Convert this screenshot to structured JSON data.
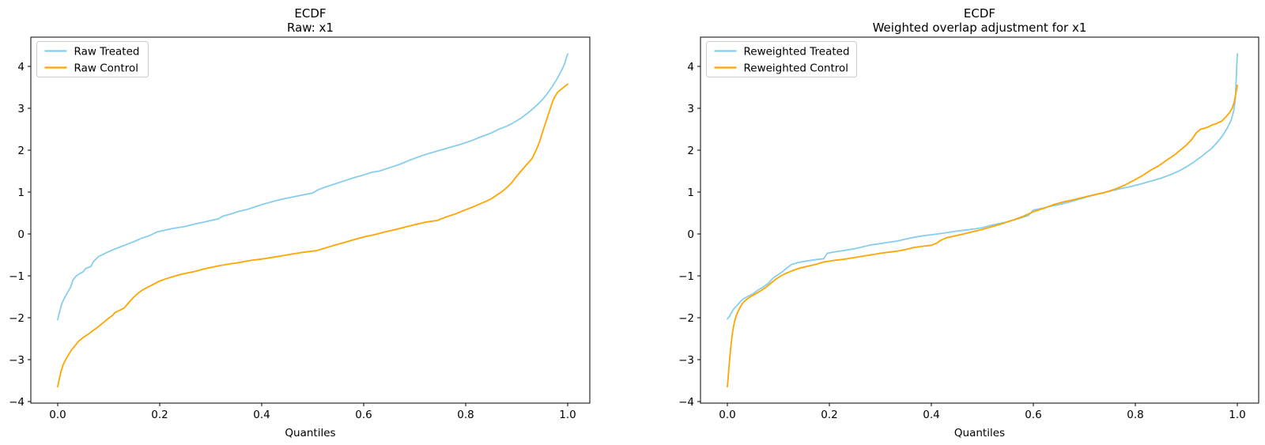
{
  "figure": {
    "background": "#ffffff",
    "text_color": "#000000",
    "spine_color": "#000000"
  },
  "chart_data": [
    {
      "type": "line",
      "title": "ECDF",
      "subtitle": "Raw: x1",
      "xlabel": "Quantiles",
      "ylabel": "",
      "xlim": [
        -0.053,
        1.043
      ],
      "ylim": [
        -4.04,
        4.36
      ],
      "grid": false,
      "legend_position": "upper left",
      "xticks": [
        0.0,
        0.2,
        0.4,
        0.6,
        0.8,
        1.0
      ],
      "xtick_labels": [
        "0.0",
        "0.2",
        "0.4",
        "0.6",
        "0.8",
        "1.0"
      ],
      "yticks": [
        -4,
        -3,
        -2,
        -1,
        0,
        1,
        2,
        3,
        4
      ],
      "ytick_labels": [
        "−4",
        "−3",
        "−2",
        "−1",
        "0",
        "1",
        "2",
        "3",
        "4"
      ],
      "series": [
        {
          "name": "Raw Treated",
          "color": "#87CEEB",
          "x": [
            0.0,
            0.004,
            0.008,
            0.012,
            0.018,
            0.025,
            0.03,
            0.035,
            0.04,
            0.05,
            0.055,
            0.065,
            0.07,
            0.08,
            0.09,
            0.1,
            0.11,
            0.12,
            0.135,
            0.15,
            0.165,
            0.18,
            0.195,
            0.21,
            0.225,
            0.25,
            0.27,
            0.285,
            0.3,
            0.315,
            0.325,
            0.34,
            0.355,
            0.37,
            0.385,
            0.4,
            0.42,
            0.44,
            0.46,
            0.48,
            0.5,
            0.51,
            0.525,
            0.545,
            0.56,
            0.58,
            0.6,
            0.615,
            0.63,
            0.65,
            0.67,
            0.69,
            0.71,
            0.73,
            0.75,
            0.77,
            0.79,
            0.81,
            0.83,
            0.85,
            0.865,
            0.88,
            0.89,
            0.9,
            0.91,
            0.92,
            0.93,
            0.94,
            0.95,
            0.96,
            0.97,
            0.98,
            0.99,
            0.995,
            1.0
          ],
          "y": [
            -2.05,
            -1.84,
            -1.66,
            -1.56,
            -1.42,
            -1.28,
            -1.1,
            -1.02,
            -0.97,
            -0.9,
            -0.82,
            -0.78,
            -0.66,
            -0.54,
            -0.48,
            -0.42,
            -0.37,
            -0.32,
            -0.25,
            -0.18,
            -0.1,
            -0.04,
            0.05,
            0.09,
            0.13,
            0.18,
            0.24,
            0.28,
            0.32,
            0.36,
            0.43,
            0.48,
            0.54,
            0.58,
            0.64,
            0.7,
            0.77,
            0.83,
            0.88,
            0.93,
            0.98,
            1.05,
            1.12,
            1.2,
            1.26,
            1.34,
            1.41,
            1.47,
            1.5,
            1.58,
            1.66,
            1.76,
            1.85,
            1.93,
            2.0,
            2.07,
            2.14,
            2.22,
            2.32,
            2.41,
            2.5,
            2.57,
            2.63,
            2.7,
            2.78,
            2.87,
            2.97,
            3.08,
            3.2,
            3.35,
            3.52,
            3.72,
            3.95,
            4.1,
            4.3
          ]
        },
        {
          "name": "Raw Control",
          "color": "#FFA500",
          "x": [
            0.0,
            0.003,
            0.006,
            0.01,
            0.015,
            0.02,
            0.027,
            0.035,
            0.042,
            0.05,
            0.06,
            0.07,
            0.08,
            0.09,
            0.1,
            0.108,
            0.112,
            0.12,
            0.13,
            0.14,
            0.148,
            0.158,
            0.166,
            0.175,
            0.185,
            0.197,
            0.21,
            0.225,
            0.24,
            0.255,
            0.27,
            0.285,
            0.3,
            0.32,
            0.34,
            0.352,
            0.37,
            0.385,
            0.4,
            0.42,
            0.44,
            0.46,
            0.48,
            0.507,
            0.52,
            0.54,
            0.56,
            0.58,
            0.6,
            0.62,
            0.642,
            0.66,
            0.68,
            0.7,
            0.72,
            0.744,
            0.76,
            0.78,
            0.8,
            0.815,
            0.83,
            0.84,
            0.85,
            0.86,
            0.87,
            0.88,
            0.89,
            0.9,
            0.91,
            0.92,
            0.93,
            0.938,
            0.945,
            0.952,
            0.958,
            0.962,
            0.966,
            0.97,
            0.975,
            0.98,
            0.99,
            1.0
          ],
          "y": [
            -3.65,
            -3.47,
            -3.3,
            -3.14,
            -3.01,
            -2.91,
            -2.77,
            -2.65,
            -2.55,
            -2.47,
            -2.39,
            -2.3,
            -2.21,
            -2.11,
            -2.01,
            -1.94,
            -1.88,
            -1.83,
            -1.77,
            -1.63,
            -1.52,
            -1.41,
            -1.34,
            -1.28,
            -1.22,
            -1.14,
            -1.08,
            -1.02,
            -0.97,
            -0.93,
            -0.89,
            -0.84,
            -0.8,
            -0.75,
            -0.71,
            -0.69,
            -0.65,
            -0.62,
            -0.6,
            -0.56,
            -0.52,
            -0.48,
            -0.44,
            -0.4,
            -0.35,
            -0.28,
            -0.21,
            -0.14,
            -0.07,
            -0.02,
            0.05,
            0.1,
            0.16,
            0.22,
            0.28,
            0.32,
            0.4,
            0.48,
            0.58,
            0.65,
            0.73,
            0.78,
            0.84,
            0.92,
            1.0,
            1.1,
            1.22,
            1.38,
            1.52,
            1.66,
            1.8,
            2.0,
            2.2,
            2.48,
            2.7,
            2.85,
            3.0,
            3.15,
            3.28,
            3.38,
            3.48,
            3.58
          ]
        }
      ]
    },
    {
      "type": "line",
      "title": "ECDF",
      "subtitle": "Weighted overlap adjustment for x1",
      "xlabel": "Quantiles",
      "ylabel": "",
      "xlim": [
        -0.053,
        1.043
      ],
      "ylim": [
        -4.04,
        4.36
      ],
      "grid": false,
      "legend_position": "upper left",
      "xticks": [
        0.0,
        0.2,
        0.4,
        0.6,
        0.8,
        1.0
      ],
      "xtick_labels": [
        "0.0",
        "0.2",
        "0.4",
        "0.6",
        "0.8",
        "1.0"
      ],
      "yticks": [
        -4,
        -3,
        -2,
        -1,
        0,
        1,
        2,
        3,
        4
      ],
      "ytick_labels": [
        "−4",
        "−3",
        "−2",
        "−1",
        "0",
        "1",
        "2",
        "3",
        "4"
      ],
      "series": [
        {
          "name": "Reweighted Treated",
          "color": "#87CEEB",
          "x": [
            0.0,
            0.004,
            0.008,
            0.012,
            0.018,
            0.025,
            0.03,
            0.04,
            0.05,
            0.06,
            0.07,
            0.08,
            0.09,
            0.1,
            0.108,
            0.118,
            0.127,
            0.14,
            0.158,
            0.175,
            0.189,
            0.196,
            0.21,
            0.231,
            0.25,
            0.265,
            0.282,
            0.3,
            0.315,
            0.333,
            0.35,
            0.366,
            0.386,
            0.406,
            0.425,
            0.445,
            0.465,
            0.485,
            0.5,
            0.515,
            0.53,
            0.545,
            0.56,
            0.575,
            0.59,
            0.6,
            0.615,
            0.63,
            0.65,
            0.67,
            0.69,
            0.71,
            0.73,
            0.75,
            0.77,
            0.79,
            0.81,
            0.83,
            0.85,
            0.87,
            0.885,
            0.9,
            0.915,
            0.93,
            0.94,
            0.95,
            0.96,
            0.97,
            0.98,
            0.988,
            0.993,
            0.996,
            1.0
          ],
          "y": [
            -2.03,
            -1.97,
            -1.88,
            -1.8,
            -1.72,
            -1.62,
            -1.56,
            -1.49,
            -1.43,
            -1.34,
            -1.27,
            -1.18,
            -1.05,
            -0.97,
            -0.9,
            -0.8,
            -0.72,
            -0.68,
            -0.64,
            -0.61,
            -0.59,
            -0.46,
            -0.43,
            -0.39,
            -0.35,
            -0.31,
            -0.26,
            -0.23,
            -0.2,
            -0.17,
            -0.12,
            -0.08,
            -0.04,
            -0.01,
            0.02,
            0.06,
            0.09,
            0.12,
            0.15,
            0.2,
            0.24,
            0.28,
            0.33,
            0.38,
            0.44,
            0.57,
            0.61,
            0.65,
            0.7,
            0.76,
            0.83,
            0.9,
            0.96,
            1.02,
            1.08,
            1.13,
            1.19,
            1.26,
            1.33,
            1.42,
            1.5,
            1.6,
            1.72,
            1.85,
            1.95,
            2.05,
            2.18,
            2.33,
            2.52,
            2.72,
            2.95,
            3.2,
            4.3
          ]
        },
        {
          "name": "Reweighted Control",
          "color": "#FFA500",
          "x": [
            0.0,
            0.002,
            0.004,
            0.006,
            0.008,
            0.01,
            0.013,
            0.016,
            0.02,
            0.025,
            0.03,
            0.038,
            0.045,
            0.055,
            0.065,
            0.075,
            0.085,
            0.095,
            0.105,
            0.115,
            0.127,
            0.14,
            0.158,
            0.175,
            0.189,
            0.21,
            0.231,
            0.25,
            0.265,
            0.282,
            0.3,
            0.32,
            0.333,
            0.35,
            0.366,
            0.386,
            0.4,
            0.41,
            0.42,
            0.43,
            0.445,
            0.46,
            0.48,
            0.5,
            0.52,
            0.54,
            0.56,
            0.58,
            0.6,
            0.62,
            0.64,
            0.66,
            0.68,
            0.7,
            0.72,
            0.74,
            0.76,
            0.78,
            0.8,
            0.815,
            0.83,
            0.845,
            0.86,
            0.875,
            0.89,
            0.9,
            0.91,
            0.92,
            0.928,
            0.935,
            0.942,
            0.95,
            0.96,
            0.97,
            0.978,
            0.985,
            0.99,
            0.994,
            1.0
          ],
          "y": [
            -3.65,
            -3.35,
            -3.05,
            -2.78,
            -2.55,
            -2.35,
            -2.15,
            -2.0,
            -1.87,
            -1.75,
            -1.65,
            -1.56,
            -1.5,
            -1.43,
            -1.36,
            -1.28,
            -1.18,
            -1.08,
            -1.0,
            -0.94,
            -0.88,
            -0.82,
            -0.77,
            -0.72,
            -0.67,
            -0.63,
            -0.6,
            -0.56,
            -0.53,
            -0.5,
            -0.46,
            -0.43,
            -0.41,
            -0.37,
            -0.32,
            -0.29,
            -0.27,
            -0.22,
            -0.14,
            -0.09,
            -0.05,
            -0.01,
            0.05,
            0.11,
            0.18,
            0.25,
            0.33,
            0.42,
            0.53,
            0.61,
            0.7,
            0.77,
            0.82,
            0.88,
            0.94,
            0.99,
            1.07,
            1.17,
            1.3,
            1.4,
            1.52,
            1.62,
            1.75,
            1.87,
            2.02,
            2.12,
            2.25,
            2.42,
            2.5,
            2.52,
            2.55,
            2.6,
            2.64,
            2.7,
            2.8,
            2.9,
            3.0,
            3.15,
            3.55
          ]
        }
      ]
    }
  ]
}
